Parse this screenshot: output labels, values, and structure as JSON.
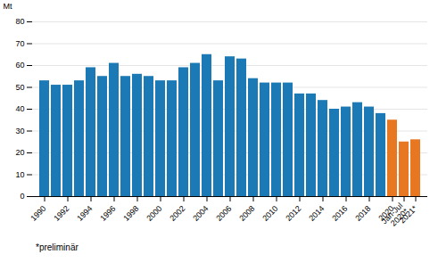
{
  "chart_data": {
    "type": "bar",
    "ylabel": "Mt",
    "categories": [
      "1990",
      null,
      "1992",
      null,
      "1994",
      null,
      "1996",
      null,
      "1998",
      null,
      "2000",
      null,
      "2002",
      null,
      "2004",
      null,
      "2006",
      null,
      "2008",
      null,
      "2010",
      null,
      "2012",
      null,
      "2014",
      null,
      "2016",
      null,
      "2018",
      null,
      "2020",
      "Jan-Jul\n2020*",
      "2021*"
    ],
    "values": [
      53,
      51,
      51,
      53,
      59,
      55,
      61,
      55,
      56,
      55,
      53,
      53,
      59,
      61,
      65,
      53,
      64,
      63,
      54,
      52,
      52,
      52,
      47,
      47,
      44,
      40,
      41,
      43,
      41,
      38,
      35,
      25,
      26
    ],
    "colors": [
      "#1b7ab5",
      "#1b7ab5",
      "#1b7ab5",
      "#1b7ab5",
      "#1b7ab5",
      "#1b7ab5",
      "#1b7ab5",
      "#1b7ab5",
      "#1b7ab5",
      "#1b7ab5",
      "#1b7ab5",
      "#1b7ab5",
      "#1b7ab5",
      "#1b7ab5",
      "#1b7ab5",
      "#1b7ab5",
      "#1b7ab5",
      "#1b7ab5",
      "#1b7ab5",
      "#1b7ab5",
      "#1b7ab5",
      "#1b7ab5",
      "#1b7ab5",
      "#1b7ab5",
      "#1b7ab5",
      "#1b7ab5",
      "#1b7ab5",
      "#1b7ab5",
      "#1b7ab5",
      "#1b7ab5",
      "#e87722",
      "#e87722",
      "#e87722"
    ],
    "ylim": [
      0,
      80
    ],
    "yticks": [
      0,
      10,
      20,
      30,
      40,
      50,
      60,
      70,
      80
    ],
    "grid": true,
    "annotations": [
      "*preliminär"
    ]
  }
}
